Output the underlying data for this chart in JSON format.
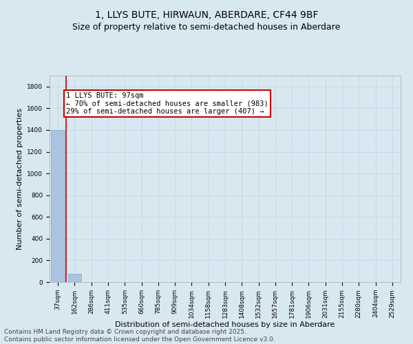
{
  "title_line1": "1, LLYS BUTE, HIRWAUN, ABERDARE, CF44 9BF",
  "title_line2": "Size of property relative to semi-detached houses in Aberdare",
  "xlabel": "Distribution of semi-detached houses by size in Aberdare",
  "ylabel": "Number of semi-detached properties",
  "categories": [
    "37sqm",
    "162sqm",
    "286sqm",
    "411sqm",
    "535sqm",
    "660sqm",
    "785sqm",
    "909sqm",
    "1034sqm",
    "1158sqm",
    "1283sqm",
    "1408sqm",
    "1532sqm",
    "1657sqm",
    "1781sqm",
    "1906sqm",
    "2031sqm",
    "2155sqm",
    "2280sqm",
    "2404sqm",
    "2529sqm"
  ],
  "values": [
    1400,
    75,
    0,
    0,
    0,
    0,
    0,
    0,
    0,
    0,
    0,
    0,
    0,
    0,
    0,
    0,
    0,
    0,
    0,
    0,
    0
  ],
  "bar_color": "#aac4e0",
  "bar_edge_color": "#7aaad0",
  "property_line_x": 0.5,
  "property_label": "1 LLYS BUTE: 97sqm",
  "pct_smaller": "70",
  "n_smaller": 983,
  "pct_larger": "29",
  "n_larger": 407,
  "annotation_box_color": "#ffffff",
  "annotation_box_edge_color": "#cc0000",
  "ylim": [
    0,
    1900
  ],
  "yticks": [
    0,
    200,
    400,
    600,
    800,
    1000,
    1200,
    1400,
    1600,
    1800
  ],
  "grid_color": "#c8d8e8",
  "background_color": "#d8e8f0",
  "plot_bg_color": "#d8e8f0",
  "footer_line1": "Contains HM Land Registry data © Crown copyright and database right 2025.",
  "footer_line2": "Contains public sector information licensed under the Open Government Licence v3.0.",
  "title_fontsize": 10,
  "subtitle_fontsize": 9,
  "tick_fontsize": 6.5,
  "ylabel_fontsize": 8,
  "xlabel_fontsize": 8,
  "footer_fontsize": 6.5,
  "annot_fontsize": 7.5,
  "red_line_color": "#cc0000"
}
